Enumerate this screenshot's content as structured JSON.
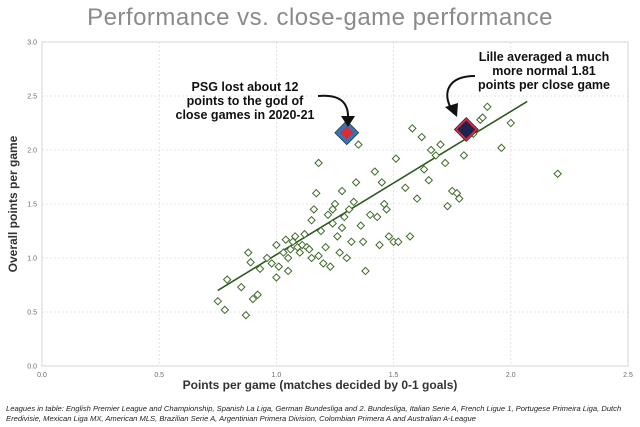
{
  "chart_data": {
    "type": "scatter",
    "title": "Performance vs. close-game performance",
    "xlabel": "Points per game (matches decided by 0-1 goals)",
    "ylabel": "Overall points per game",
    "xlim": [
      0,
      2.5
    ],
    "ylim": [
      0,
      3.0
    ],
    "x_ticks": [
      "0.0",
      "0.5",
      "1.0",
      "1.5",
      "2.0",
      "2.5"
    ],
    "y_ticks": [
      "0.0",
      "0.5",
      "1.0",
      "1.5",
      "2.0",
      "2.5",
      "3.0"
    ],
    "grid": true,
    "marker": "diamond",
    "colors": {
      "points": "#3f6b2a",
      "trend": "#2f5a1f",
      "psg_outer": "#2e78b7",
      "psg_inner": "#d92b3a",
      "lille_outer": "#d92b3a",
      "lille_inner": "#1f2350",
      "title": "#8a8a8a"
    },
    "series": [
      {
        "values": [
          {
            "x": 0.75,
            "y": 0.6
          },
          {
            "x": 0.78,
            "y": 0.52
          },
          {
            "x": 0.79,
            "y": 0.8
          },
          {
            "x": 0.85,
            "y": 0.73
          },
          {
            "x": 0.87,
            "y": 0.47
          },
          {
            "x": 0.88,
            "y": 1.05
          },
          {
            "x": 0.89,
            "y": 0.96
          },
          {
            "x": 0.9,
            "y": 0.62
          },
          {
            "x": 0.92,
            "y": 0.66
          },
          {
            "x": 0.93,
            "y": 0.9
          },
          {
            "x": 0.96,
            "y": 1.0
          },
          {
            "x": 0.98,
            "y": 0.95
          },
          {
            "x": 1.0,
            "y": 1.12
          },
          {
            "x": 1.0,
            "y": 0.82
          },
          {
            "x": 1.01,
            "y": 0.92
          },
          {
            "x": 1.03,
            "y": 1.05
          },
          {
            "x": 1.04,
            "y": 1.17
          },
          {
            "x": 1.05,
            "y": 1.0
          },
          {
            "x": 1.06,
            "y": 1.08
          },
          {
            "x": 1.07,
            "y": 1.15
          },
          {
            "x": 1.08,
            "y": 1.2
          },
          {
            "x": 1.09,
            "y": 1.1
          },
          {
            "x": 1.1,
            "y": 1.05
          },
          {
            "x": 1.11,
            "y": 1.12
          },
          {
            "x": 1.12,
            "y": 1.22
          },
          {
            "x": 1.13,
            "y": 1.1
          },
          {
            "x": 1.14,
            "y": 1.08
          },
          {
            "x": 1.15,
            "y": 1.0
          },
          {
            "x": 1.15,
            "y": 1.35
          },
          {
            "x": 1.16,
            "y": 1.45
          },
          {
            "x": 1.17,
            "y": 1.6
          },
          {
            "x": 1.18,
            "y": 1.88
          },
          {
            "x": 1.18,
            "y": 1.02
          },
          {
            "x": 1.19,
            "y": 1.25
          },
          {
            "x": 1.2,
            "y": 0.95
          },
          {
            "x": 1.21,
            "y": 1.1
          },
          {
            "x": 1.22,
            "y": 1.4
          },
          {
            "x": 1.23,
            "y": 0.92
          },
          {
            "x": 1.24,
            "y": 1.32
          },
          {
            "x": 1.25,
            "y": 1.5
          },
          {
            "x": 1.26,
            "y": 1.2
          },
          {
            "x": 1.27,
            "y": 1.05
          },
          {
            "x": 1.28,
            "y": 1.28
          },
          {
            "x": 1.29,
            "y": 1.38
          },
          {
            "x": 1.3,
            "y": 1.0
          },
          {
            "x": 1.31,
            "y": 1.45
          },
          {
            "x": 1.32,
            "y": 1.15
          },
          {
            "x": 1.33,
            "y": 1.52
          },
          {
            "x": 1.34,
            "y": 1.7
          },
          {
            "x": 1.35,
            "y": 2.05
          },
          {
            "x": 1.36,
            "y": 1.3
          },
          {
            "x": 1.37,
            "y": 1.15
          },
          {
            "x": 1.38,
            "y": 0.88
          },
          {
            "x": 1.4,
            "y": 1.4
          },
          {
            "x": 1.42,
            "y": 1.8
          },
          {
            "x": 1.43,
            "y": 1.38
          },
          {
            "x": 1.45,
            "y": 1.7
          },
          {
            "x": 1.46,
            "y": 1.5
          },
          {
            "x": 1.47,
            "y": 1.45
          },
          {
            "x": 1.48,
            "y": 1.2
          },
          {
            "x": 1.5,
            "y": 1.15
          },
          {
            "x": 1.51,
            "y": 1.92
          },
          {
            "x": 1.52,
            "y": 1.15
          },
          {
            "x": 1.55,
            "y": 1.65
          },
          {
            "x": 1.57,
            "y": 1.2
          },
          {
            "x": 1.6,
            "y": 1.55
          },
          {
            "x": 1.63,
            "y": 1.82
          },
          {
            "x": 1.65,
            "y": 1.72
          },
          {
            "x": 1.68,
            "y": 1.95
          },
          {
            "x": 1.7,
            "y": 2.05
          },
          {
            "x": 1.72,
            "y": 1.88
          },
          {
            "x": 1.75,
            "y": 1.62
          },
          {
            "x": 1.77,
            "y": 1.6
          },
          {
            "x": 1.78,
            "y": 1.55
          },
          {
            "x": 1.8,
            "y": 1.95
          },
          {
            "x": 1.84,
            "y": 2.15
          },
          {
            "x": 1.87,
            "y": 2.28
          },
          {
            "x": 1.88,
            "y": 2.3
          },
          {
            "x": 1.9,
            "y": 2.4
          },
          {
            "x": 1.96,
            "y": 2.02
          },
          {
            "x": 2.0,
            "y": 2.25
          },
          {
            "x": 2.2,
            "y": 1.78
          },
          {
            "x": 1.58,
            "y": 2.2
          },
          {
            "x": 1.62,
            "y": 2.12
          },
          {
            "x": 1.66,
            "y": 2.0
          },
          {
            "x": 1.73,
            "y": 1.48
          },
          {
            "x": 1.44,
            "y": 1.12
          },
          {
            "x": 1.28,
            "y": 1.62
          },
          {
            "x": 1.24,
            "y": 1.45
          },
          {
            "x": 1.05,
            "y": 0.88
          }
        ]
      }
    ],
    "trendline": {
      "from": {
        "x": 0.75,
        "y": 0.7
      },
      "to": {
        "x": 2.07,
        "y": 2.45
      }
    },
    "highlights": [
      {
        "team": "PSG",
        "x": 1.3,
        "y": 2.16
      },
      {
        "team": "Lille",
        "x": 1.81,
        "y": 2.19
      }
    ],
    "annotations": [
      {
        "lines": [
          "PSG lost about 12",
          "points to the god of",
          "close games in 2020-21"
        ]
      },
      {
        "lines": [
          "Lille averaged a much",
          "more normal 1.81",
          "points per close game"
        ]
      }
    ],
    "footnote": "Leagues in table: English Premier League and Championship, Spanish La Liga, German Bundesliga and 2. Bundesliga, Italian Serie A, French Ligue 1, Portugese Primeira Liga, Dutch Eredivisie, Mexican Liga MX, American MLS, Brazilian Serie A, Argentinian Primera Division, Colombian Primera A and Australian A-League"
  }
}
